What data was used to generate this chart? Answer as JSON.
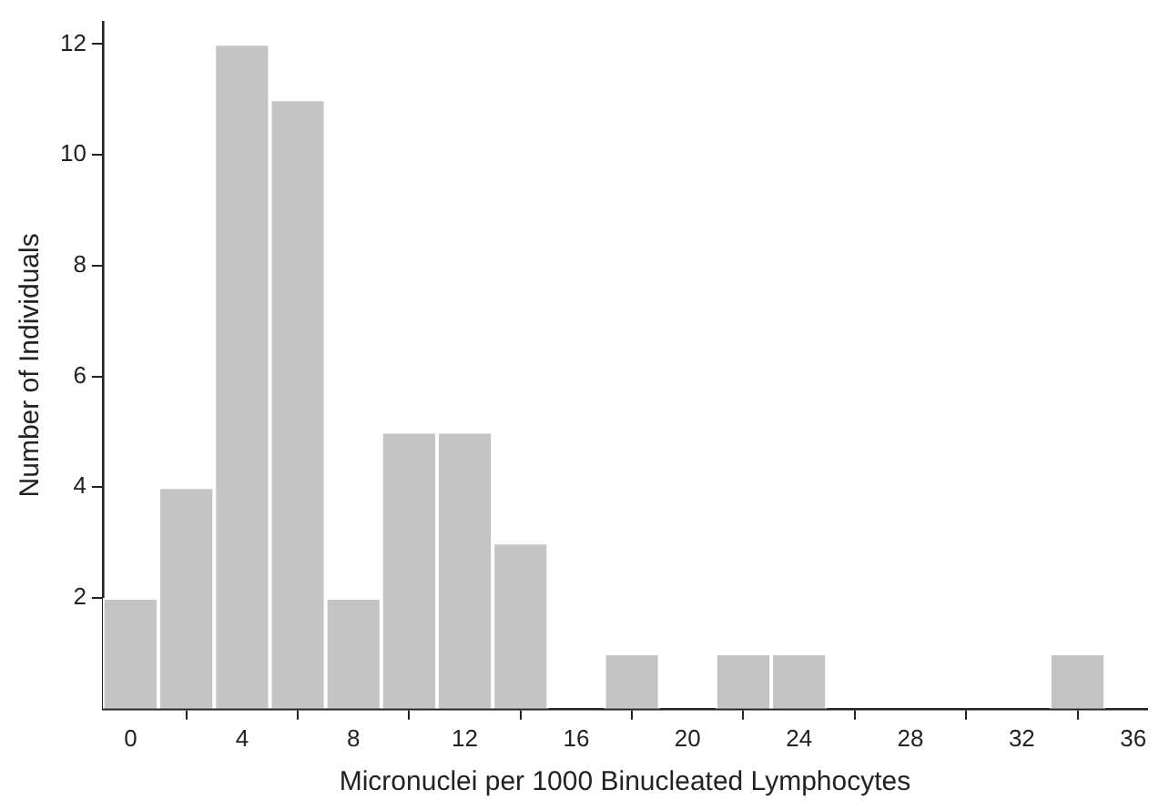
{
  "chart_data": {
    "type": "histogram",
    "xlabel": "Micronuclei per 1000 Binucleated Lymphocytes",
    "ylabel": "Number of Individuals",
    "bins": [
      -1,
      1,
      3,
      5,
      7,
      9,
      11,
      13,
      15,
      17,
      19,
      21,
      23,
      25,
      27,
      29,
      31,
      33,
      35
    ],
    "values": [
      2,
      4,
      12,
      11,
      2,
      5,
      5,
      3,
      0,
      1,
      0,
      1,
      1,
      0,
      0,
      0,
      0,
      1
    ],
    "color": "#c4c4c4",
    "xlim": [
      -1,
      36.5
    ],
    "ylim": [
      0,
      12.4
    ],
    "xticks": [
      0,
      4,
      8,
      12,
      16,
      20,
      24,
      28,
      32,
      36
    ],
    "yticks": [
      2,
      4,
      6,
      8,
      10,
      12
    ],
    "grid": false,
    "legend": false
  }
}
